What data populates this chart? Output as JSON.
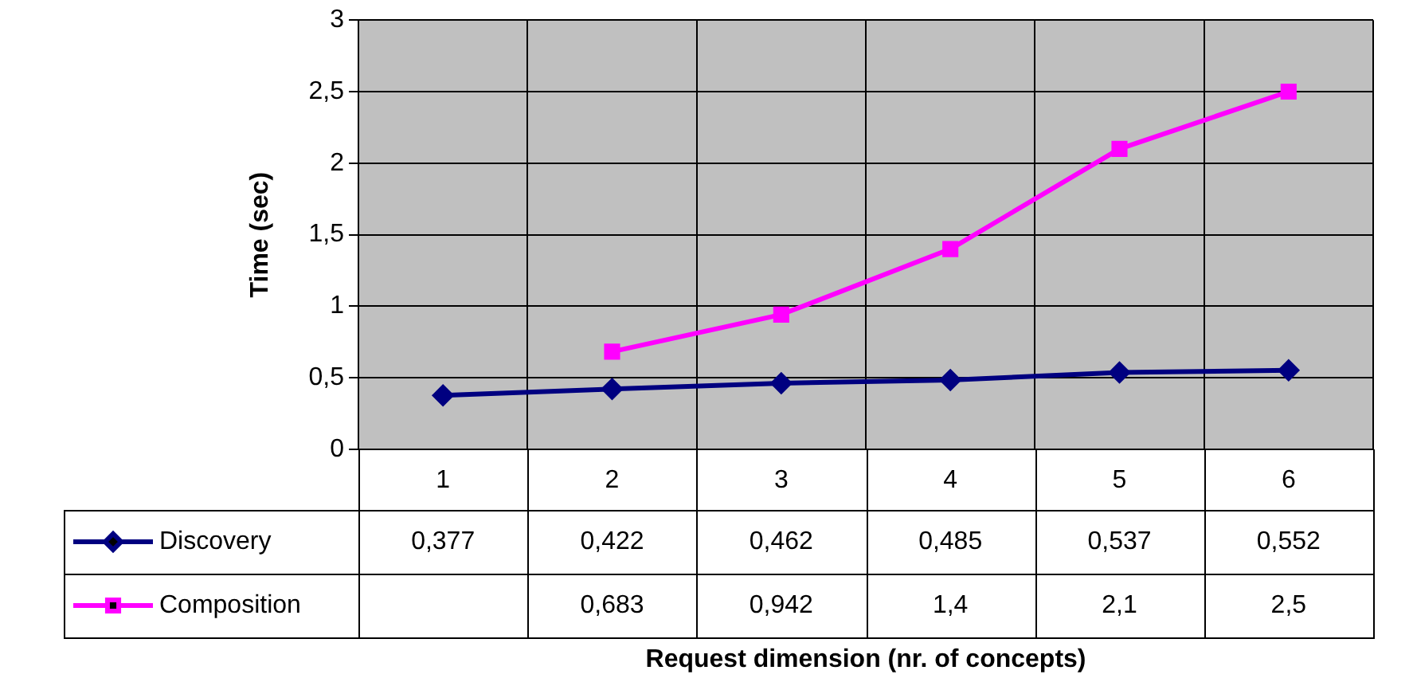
{
  "chart_data": {
    "type": "line",
    "annotations": [
      "Request dimension (nr. of concepts)"
    ],
    "ylabel": "Time (sec)",
    "categories": [
      "1",
      "2",
      "3",
      "4",
      "5",
      "6"
    ],
    "series": [
      {
        "name": "Discovery",
        "color": "#000080",
        "marker": "diamond",
        "values": [
          0.377,
          0.422,
          0.462,
          0.485,
          0.537,
          0.552
        ],
        "value_labels": [
          "0,377",
          "0,422",
          "0,462",
          "0,485",
          "0,537",
          "0,552"
        ]
      },
      {
        "name": "Composition",
        "color": "#ff00ff",
        "marker": "square",
        "values": [
          null,
          0.683,
          0.942,
          1.4,
          2.1,
          2.5
        ],
        "value_labels": [
          null,
          "0,683",
          "0,942",
          "1,4",
          "2,1",
          "2,5"
        ]
      }
    ],
    "ylim": [
      0,
      3
    ],
    "yticks": [
      0,
      {
        "value": 0.5,
        "label": "0,5"
      },
      1,
      {
        "value": 1.5,
        "label": "1,5"
      },
      2,
      {
        "value": 2.5,
        "label": "2,5"
      },
      3
    ],
    "grid": true,
    "legend": "bottom left"
  }
}
